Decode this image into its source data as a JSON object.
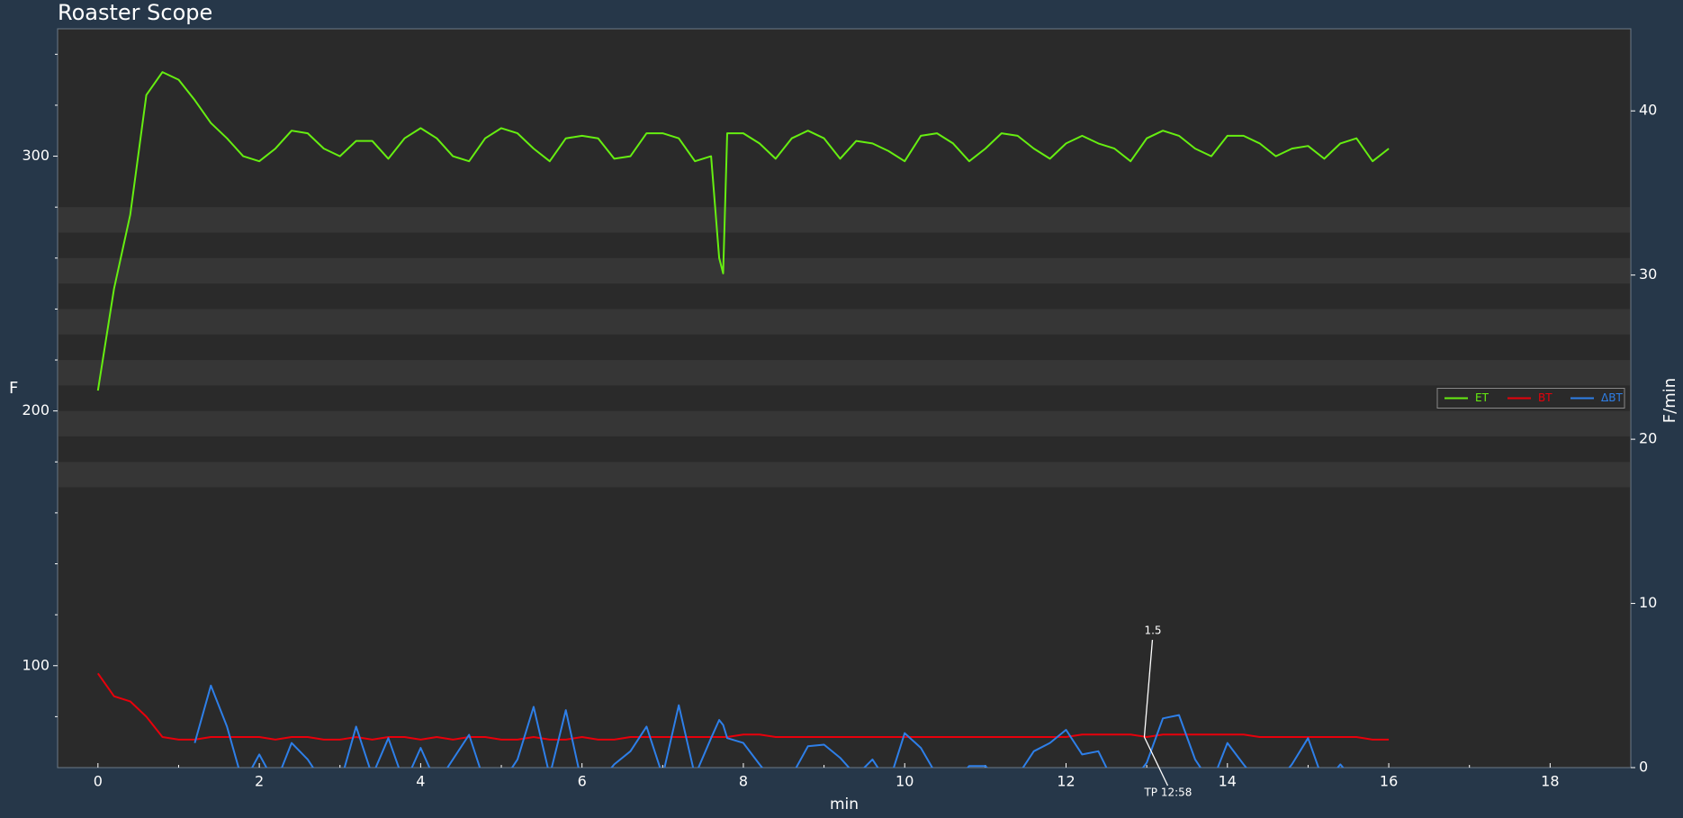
{
  "chart_data": {
    "type": "line",
    "title": "Roaster Scope",
    "xlabel": "min",
    "ylabel": "F",
    "y2label": "F/min",
    "x": [
      0,
      0.2,
      0.4,
      0.6,
      0.8,
      1.0,
      1.2,
      1.4,
      1.6,
      1.8,
      2.0,
      2.2,
      2.4,
      2.6,
      2.8,
      3.0,
      3.2,
      3.4,
      3.6,
      3.8,
      4.0,
      4.2,
      4.4,
      4.6,
      4.8,
      5.0,
      5.2,
      5.4,
      5.6,
      5.8,
      6.0,
      6.2,
      6.4,
      6.6,
      6.8,
      7.0,
      7.2,
      7.4,
      7.6,
      7.7,
      7.75,
      7.8,
      8.0,
      8.2,
      8.4,
      8.6,
      8.8,
      9.0,
      9.2,
      9.4,
      9.6,
      9.8,
      10.0,
      10.2,
      10.4,
      10.6,
      10.8,
      11.0,
      11.2,
      11.4,
      11.6,
      11.8,
      12.0,
      12.2,
      12.4,
      12.6,
      12.8,
      13.0,
      13.2,
      13.4,
      13.6,
      13.8,
      14.0,
      14.2,
      14.4,
      14.6,
      14.8,
      15.0,
      15.2,
      15.4,
      15.6,
      15.8,
      16.0
    ],
    "series": [
      {
        "name": "ET",
        "color": "#66ee11",
        "values": [
          208,
          248,
          277,
          324,
          333,
          330,
          322,
          313,
          307,
          300,
          298,
          303,
          310,
          309,
          303,
          300,
          306,
          306,
          299,
          307,
          311,
          307,
          300,
          298,
          307,
          311,
          309,
          303,
          298,
          307,
          308,
          307,
          299,
          300,
          309,
          309,
          307,
          298,
          300,
          260,
          254,
          309,
          309,
          305,
          299,
          307,
          310,
          307,
          299,
          306,
          305,
          302,
          298,
          308,
          309,
          305,
          298,
          303,
          309,
          308,
          303,
          299,
          305,
          308,
          305,
          303,
          298,
          307,
          310,
          308,
          303,
          300,
          308,
          308,
          305,
          300,
          303,
          304,
          299,
          305,
          307,
          298,
          303
        ]
      },
      {
        "name": "BT",
        "color": "#e8000b",
        "values": [
          97,
          88,
          86,
          80,
          72,
          71,
          71,
          72,
          72,
          72,
          72,
          71,
          72,
          72,
          71,
          71,
          72,
          71,
          72,
          72,
          71,
          72,
          71,
          72,
          72,
          71,
          71,
          72,
          71,
          71,
          72,
          71,
          71,
          72,
          72,
          72,
          72,
          72,
          72,
          72,
          72,
          72,
          73,
          73,
          72,
          72,
          72,
          72,
          72,
          72,
          72,
          72,
          72,
          72,
          72,
          72,
          72,
          72,
          72,
          72,
          72,
          72,
          72,
          73,
          73,
          73,
          73,
          72,
          73,
          73,
          73,
          73,
          73,
          73,
          72,
          72,
          72,
          72,
          72,
          72,
          72,
          71,
          71
        ]
      },
      {
        "name": "ΔBT",
        "color": "#2e7fe8",
        "axis": "y2",
        "values": [
          null,
          null,
          null,
          null,
          null,
          null,
          1.5,
          5.0,
          2.5,
          -1,
          0.8,
          -1,
          1.5,
          0.5,
          -1,
          -1,
          2.5,
          -0.5,
          1.8,
          -1,
          1.2,
          -1,
          0.5,
          2.0,
          -1,
          -1,
          0.5,
          3.7,
          -0.5,
          3.5,
          -1,
          -1,
          0.2,
          1.0,
          2.5,
          -0.5,
          3.8,
          -0.5,
          1.8,
          2.9,
          2.6,
          1.8,
          1.5,
          0.2,
          -1,
          -0.5,
          1.3,
          1.4,
          0.6,
          -0.5,
          0.5,
          -1,
          2.1,
          1.2,
          -0.5,
          -1,
          0.1,
          0.1,
          -1,
          -0.5,
          1.0,
          1.5,
          2.3,
          0.8,
          1.0,
          -1,
          -1,
          0.3,
          3.0,
          3.2,
          0.5,
          -1,
          1.5,
          0.2,
          -1,
          -1,
          0.2,
          1.8,
          -1,
          0.2,
          -1,
          -1,
          -1
        ]
      }
    ],
    "xlim": [
      -0.5,
      19
    ],
    "xticks": [
      0,
      2,
      4,
      6,
      8,
      10,
      12,
      14,
      16,
      18
    ],
    "xticks_minor": [
      1,
      3,
      5,
      7,
      9,
      11,
      13,
      15,
      17
    ],
    "ylim": [
      60,
      350
    ],
    "yticks": [
      100,
      200,
      300
    ],
    "yticks_minor": [
      80,
      120,
      140,
      160,
      180,
      220,
      240,
      260,
      280,
      320,
      340
    ],
    "y2lim": [
      0,
      45
    ],
    "y2ticks": [
      0,
      10,
      20,
      30,
      40
    ],
    "bands": [
      [
        170,
        180
      ],
      [
        190,
        200
      ],
      [
        210,
        220
      ],
      [
        230,
        240
      ],
      [
        250,
        260
      ],
      [
        270,
        280
      ]
    ],
    "annotations": [
      {
        "text": "1.5",
        "x": 12.97,
        "y": 72
      },
      {
        "text": "TP 12:58",
        "x": 12.97,
        "y": 72
      }
    ],
    "legend": "center right"
  }
}
